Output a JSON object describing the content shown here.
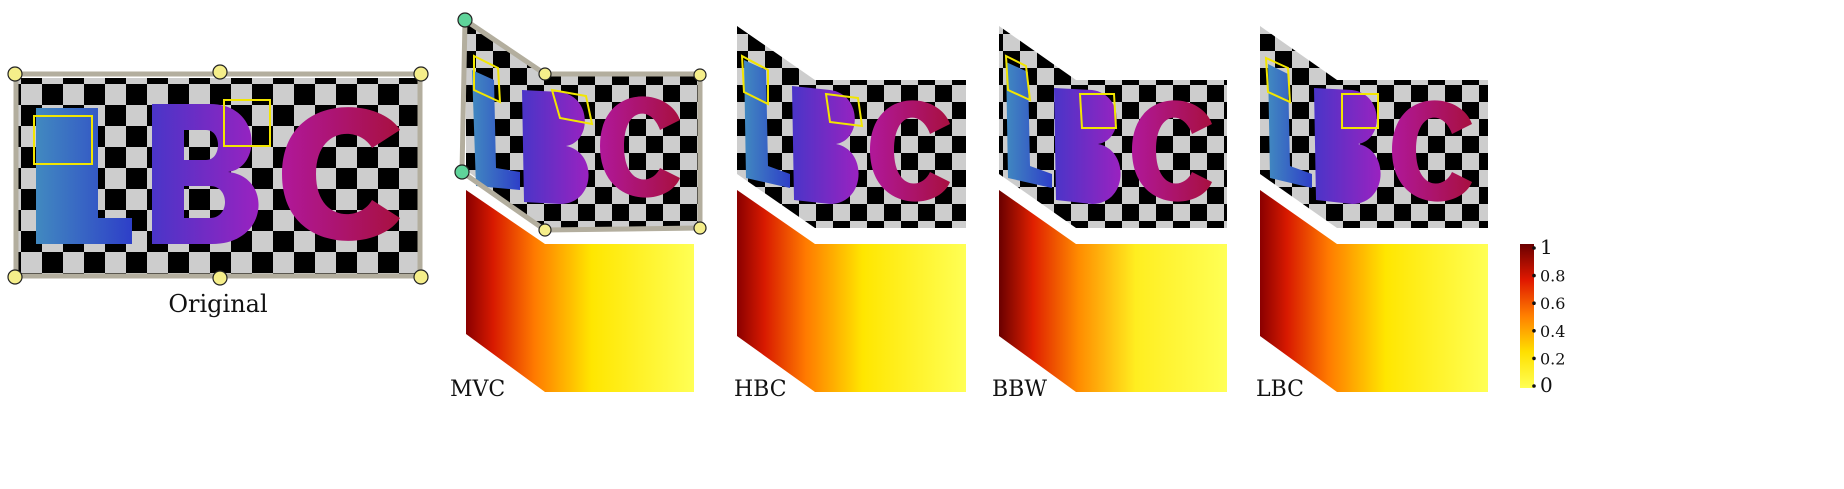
{
  "labels": {
    "original": "Original",
    "mvc": "MVC",
    "hbc": "HBC",
    "bbw": "BBW",
    "lbc": "LBC"
  },
  "colorbar": {
    "ticks": [
      "1",
      "0.8",
      "0.6",
      "0.4",
      "0.2",
      "0"
    ],
    "colormap": "hot",
    "range": [
      0,
      1
    ]
  },
  "colors": {
    "cage": "#b3ae9e",
    "handle": "#f5ee8a",
    "selected_handle": "#5fd49a",
    "highlight_box": "#f2e600",
    "checker_light": "#cdcdcd",
    "checker_dark": "#000000",
    "letter_L": "#3a7fbd",
    "letter_B": "#6a2fd0",
    "letter_C": "#b01050"
  },
  "panels": [
    "original",
    "mvc",
    "hbc",
    "bbw",
    "lbc"
  ]
}
